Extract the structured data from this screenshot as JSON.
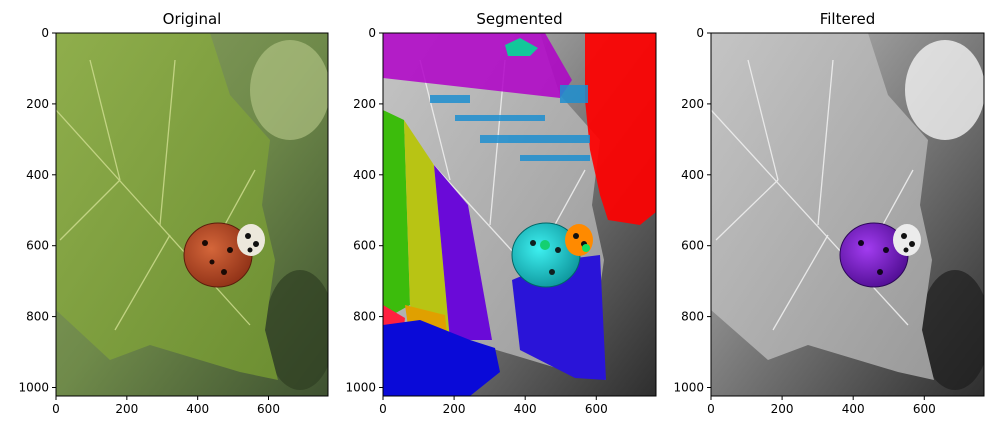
{
  "chart_data": [
    {
      "type": "image",
      "title": "Original",
      "xticks": [
        0,
        200,
        400,
        600
      ],
      "yticks": [
        0,
        200,
        400,
        600,
        800,
        1000
      ],
      "xlim": [
        0,
        768
      ],
      "ylim": [
        1024,
        0
      ]
    },
    {
      "type": "image",
      "title": "Segmented",
      "xticks": [
        0,
        200,
        400,
        600
      ],
      "yticks": [
        0,
        200,
        400,
        600,
        800,
        1000
      ],
      "xlim": [
        0,
        768
      ],
      "ylim": [
        1024,
        0
      ]
    },
    {
      "type": "image",
      "title": "Filtered",
      "xticks": [
        0,
        200,
        400,
        600
      ],
      "yticks": [
        0,
        200,
        400,
        600,
        800,
        1000
      ],
      "xlim": [
        0,
        768
      ],
      "ylim": [
        1024,
        0
      ]
    }
  ]
}
